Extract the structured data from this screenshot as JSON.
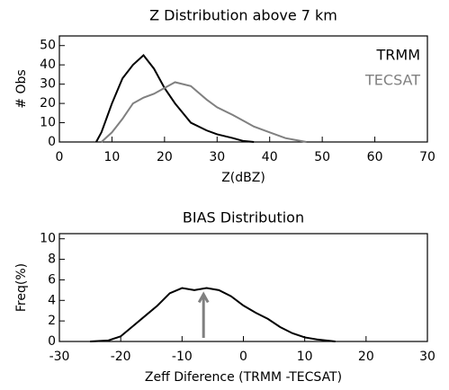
{
  "chart_data": [
    {
      "type": "line",
      "title": "Z Distribution above 7 km",
      "xlabel": "Z(dBZ)",
      "ylabel": "# Obs",
      "x": [
        7,
        8,
        10,
        12,
        14,
        16,
        18,
        20,
        22,
        25,
        28,
        30,
        33,
        35,
        37,
        40,
        43,
        45,
        47
      ],
      "series": [
        {
          "name": "TRMM",
          "color": "#000000",
          "values": [
            0,
            5,
            20,
            33,
            40,
            45,
            38,
            28,
            20,
            10,
            6,
            4,
            2,
            0.5,
            0,
            null,
            null,
            null,
            null
          ]
        },
        {
          "name": "TECSAT",
          "color": "#808080",
          "values": [
            null,
            0,
            5,
            12,
            20,
            23,
            25,
            28,
            31,
            29,
            22,
            18,
            14,
            11,
            8,
            5,
            2,
            1,
            0
          ]
        }
      ],
      "xlim": [
        0,
        70
      ],
      "xticks": [
        0,
        10,
        20,
        30,
        40,
        50,
        60,
        70
      ],
      "ylim": [
        0,
        55
      ],
      "yticks": [
        0,
        10,
        20,
        30,
        40,
        50
      ],
      "legend": "top-right"
    },
    {
      "type": "line",
      "title": "BIAS Distribution",
      "xlabel": "Zeff Diference (TRMM -TECSAT)",
      "ylabel": "Freq(%)",
      "x": [
        -25,
        -22,
        -20,
        -18,
        -16,
        -14,
        -12,
        -10,
        -8,
        -6,
        -4,
        -2,
        0,
        2,
        4,
        6,
        8,
        10,
        12,
        15
      ],
      "values": [
        0,
        0.1,
        0.5,
        1.5,
        2.5,
        3.5,
        4.7,
        5.2,
        5.0,
        5.2,
        5.0,
        4.4,
        3.5,
        2.8,
        2.2,
        1.4,
        0.8,
        0.4,
        0.2,
        0
      ],
      "color": "#000000",
      "arrow_x": -6.5,
      "arrow_color": "#808080",
      "xlim": [
        -30,
        30
      ],
      "xticks": [
        -30,
        -20,
        -10,
        0,
        10,
        20,
        30
      ],
      "ylim": [
        0,
        10.5
      ],
      "yticks": [
        0,
        2,
        4,
        6,
        8,
        10
      ]
    }
  ]
}
